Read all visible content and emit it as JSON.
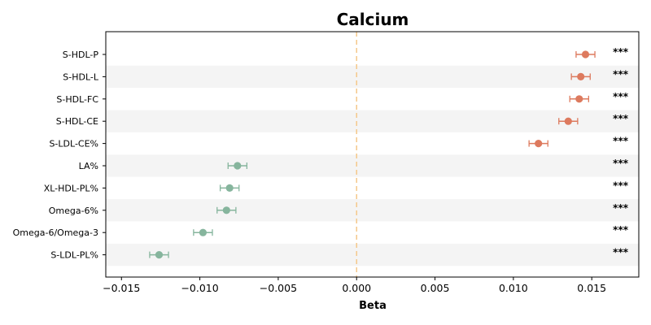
{
  "chart_data": {
    "type": "forest",
    "title": "Calcium",
    "xlabel": "Beta",
    "ylabel": "",
    "xlim": [
      -0.016,
      0.018
    ],
    "xticks": [
      -0.015,
      -0.01,
      -0.005,
      0.0,
      0.005,
      0.01,
      0.015
    ],
    "xtick_labels": [
      "−0.015",
      "−0.010",
      "−0.005",
      "0.000",
      "0.005",
      "0.010",
      "0.015"
    ],
    "reference_line": 0.0,
    "grid": false,
    "legend": "none",
    "colors": {
      "positive": "#dd7a5e",
      "negative": "#86b59d",
      "reference": "#f5c88a",
      "band": "#f4f4f4"
    },
    "rows": [
      {
        "label": "S-HDL-P",
        "beta": 0.0146,
        "ci_low": 0.014,
        "ci_high": 0.0152,
        "sig": "***"
      },
      {
        "label": "S-HDL-L",
        "beta": 0.0143,
        "ci_low": 0.0137,
        "ci_high": 0.0149,
        "sig": "***"
      },
      {
        "label": "S-HDL-FC",
        "beta": 0.0142,
        "ci_low": 0.0136,
        "ci_high": 0.0148,
        "sig": "***"
      },
      {
        "label": "S-HDL-CE",
        "beta": 0.0135,
        "ci_low": 0.0129,
        "ci_high": 0.0141,
        "sig": "***"
      },
      {
        "label": "S-LDL-CE%",
        "beta": 0.0116,
        "ci_low": 0.011,
        "ci_high": 0.0122,
        "sig": "***"
      },
      {
        "label": "LA%",
        "beta": -0.0076,
        "ci_low": -0.0082,
        "ci_high": -0.007,
        "sig": "***"
      },
      {
        "label": "XL-HDL-PL%",
        "beta": -0.0081,
        "ci_low": -0.0087,
        "ci_high": -0.0075,
        "sig": "***"
      },
      {
        "label": "Omega-6%",
        "beta": -0.0083,
        "ci_low": -0.0089,
        "ci_high": -0.0077,
        "sig": "***"
      },
      {
        "label": "Omega-6/Omega-3",
        "beta": -0.0098,
        "ci_low": -0.0104,
        "ci_high": -0.0092,
        "sig": "***"
      },
      {
        "label": "S-LDL-PL%",
        "beta": -0.0126,
        "ci_low": -0.0132,
        "ci_high": -0.012,
        "sig": "***"
      }
    ]
  }
}
